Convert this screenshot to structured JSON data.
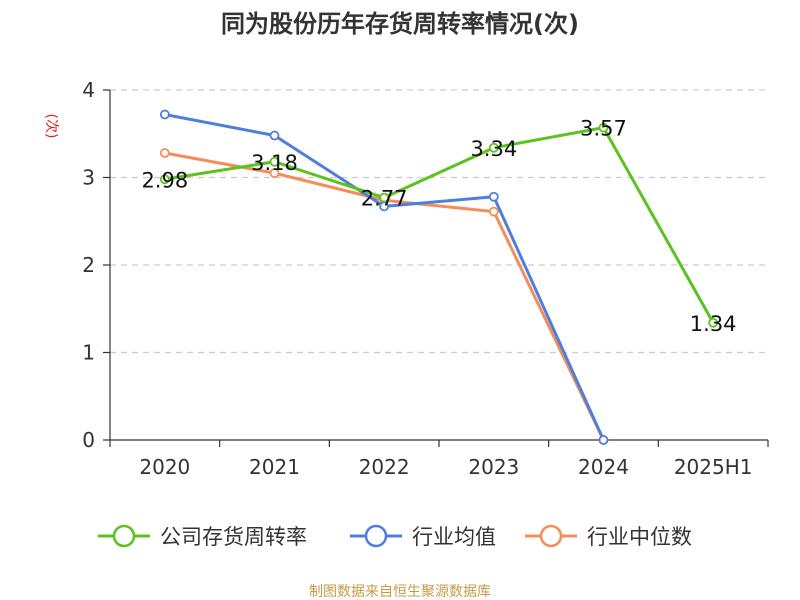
{
  "chart_data": {
    "type": "line",
    "title": "同为股份历年存货周转率情况(次)",
    "ylabel": "(次)",
    "xlabel": "",
    "categories": [
      "2020",
      "2021",
      "2022",
      "2023",
      "2024",
      "2025H1"
    ],
    "ylim": [
      0,
      4
    ],
    "yticks": [
      0,
      1,
      2,
      3,
      4
    ],
    "grid": true,
    "legend_position": "bottom",
    "series": [
      {
        "name": "公司存货周转率",
        "color": "#5cc21e",
        "values": [
          2.98,
          3.18,
          2.77,
          3.34,
          3.57,
          1.34
        ],
        "data_labels": [
          "2.98",
          "3.18",
          "2.77",
          "3.34",
          "3.57",
          "1.34"
        ]
      },
      {
        "name": "行业均值",
        "color": "#4f7fdc",
        "values": [
          3.72,
          3.48,
          2.67,
          2.78,
          0,
          null
        ]
      },
      {
        "name": "行业中位数",
        "color": "#f58c5a",
        "values": [
          3.28,
          3.05,
          2.74,
          2.61,
          0,
          null
        ]
      }
    ]
  },
  "footer": {
    "source": "制图数据来自恒生聚源数据库"
  }
}
